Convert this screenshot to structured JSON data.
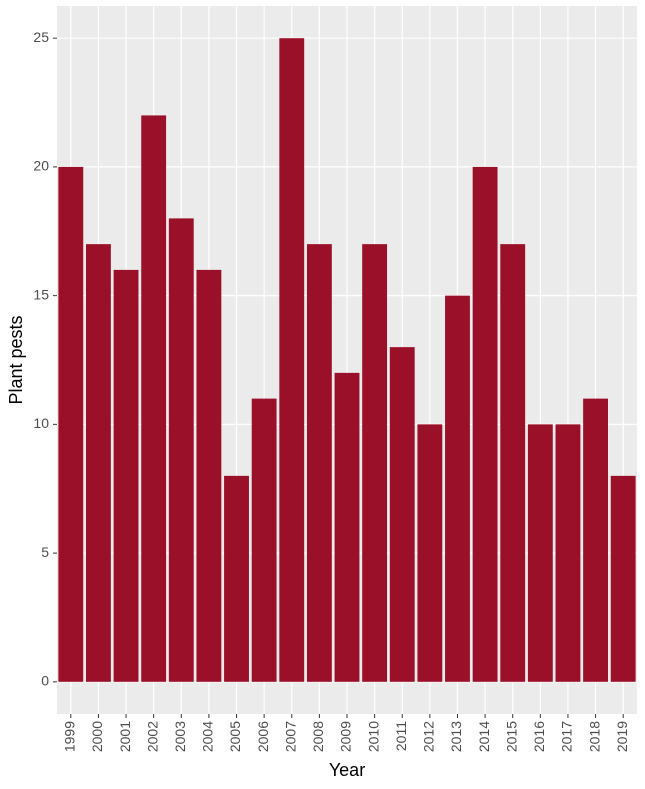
{
  "chart_data": {
    "type": "bar",
    "x_label": "Year",
    "y_label": "Plant pests",
    "categories": [
      "1999",
      "2000",
      "2001",
      "2002",
      "2003",
      "2004",
      "2005",
      "2006",
      "2007",
      "2008",
      "2009",
      "2010",
      "2011",
      "2012",
      "2013",
      "2014",
      "2015",
      "2016",
      "2017",
      "2018",
      "2019"
    ],
    "values": [
      20,
      17,
      16,
      22,
      18,
      16,
      8,
      11,
      25,
      17,
      12,
      17,
      13,
      10,
      15,
      20,
      17,
      10,
      10,
      11,
      8
    ],
    "color": "#9b1029",
    "ylim": [
      -1.25,
      26.25
    ],
    "yticks": [
      0,
      5,
      10,
      15,
      20,
      25
    ],
    "grid": true
  }
}
